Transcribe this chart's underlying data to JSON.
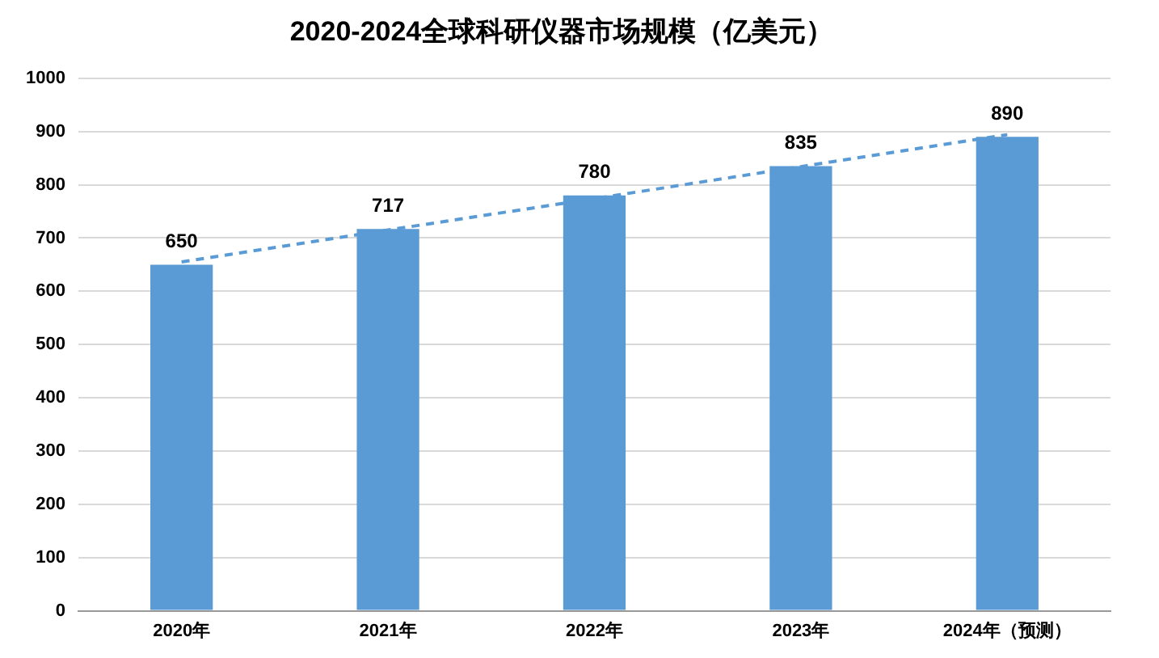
{
  "chart_data": {
    "type": "bar",
    "title": "2020-2024全球科研仪器市场规模（亿美元）",
    "categories": [
      "2020年",
      "2021年",
      "2022年",
      "2023年",
      "2024年（预测）"
    ],
    "series": [
      {
        "color": "#5b9bd5",
        "values": [
          650,
          717,
          780,
          835,
          890
        ],
        "value_labels": [
          "650",
          "717",
          "780",
          "835",
          "890"
        ]
      },
      {
        "type": "line",
        "color": "#5b9bd5",
        "line_style": "dashed",
        "marker": "none",
        "values": [
          655,
          715,
          774,
          834,
          894
        ]
      }
    ],
    "ylim": [
      0,
      1000
    ],
    "yticks": [
      0,
      100,
      200,
      300,
      400,
      500,
      600,
      700,
      800,
      900,
      1000
    ],
    "grid": "y",
    "legend": false
  }
}
